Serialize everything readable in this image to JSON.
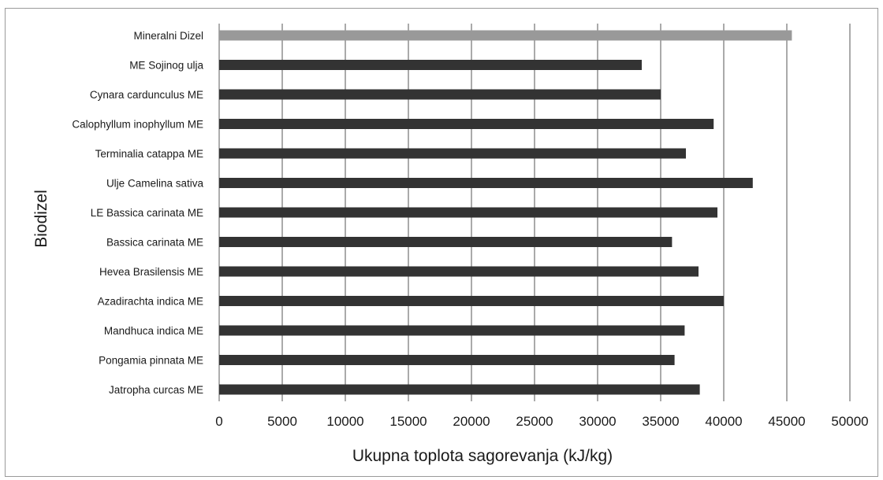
{
  "chart_data": {
    "type": "bar",
    "orientation": "horizontal",
    "title": "",
    "xlabel": "Ukupna toplota sagorevanja (kJ/kg)",
    "ylabel": "Biodizel",
    "xlim": [
      0,
      50000
    ],
    "xticks": [
      0,
      5000,
      10000,
      15000,
      20000,
      25000,
      30000,
      35000,
      40000,
      45000,
      50000
    ],
    "grid": "vertical",
    "legend": "none",
    "categories": [
      "Mineralni Dizel",
      "ME Sojinog ulja",
      "Cynara cardunculus ME",
      "Calophyllum inophyllum  ME",
      "Terminalia catappa ME",
      "Ulje Camelina sativa",
      "LE Bassica carinata ME",
      "Bassica carinata ME",
      "Hevea Brasilensis ME",
      "Azadirachta indica ME",
      "Mandhuca indica ME",
      "Pongamia pinnata ME",
      "Jatropha curcas ME"
    ],
    "values": [
      45400,
      33500,
      35000,
      39200,
      37000,
      42300,
      39500,
      35900,
      38000,
      40000,
      36900,
      36100,
      38100
    ],
    "colors": {
      "highlight": "#999999",
      "default": "#333333",
      "grid": "#555555",
      "frame": "#9a9a9a",
      "axis": "#777777"
    },
    "highlight_category": "Mineralni Dizel"
  }
}
